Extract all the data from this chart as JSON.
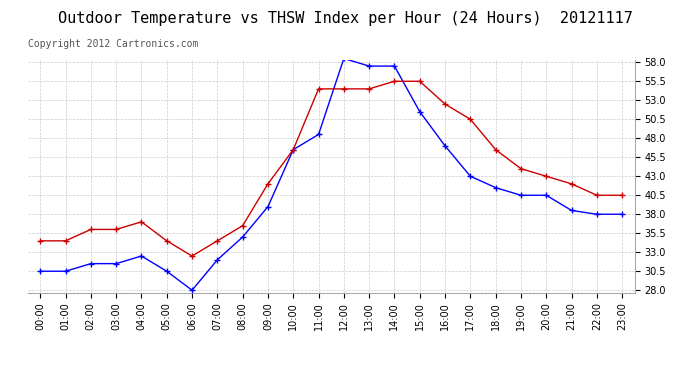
{
  "title": "Outdoor Temperature vs THSW Index per Hour (24 Hours)  20121117",
  "copyright": "Copyright 2012 Cartronics.com",
  "hours": [
    "00:00",
    "01:00",
    "02:00",
    "03:00",
    "04:00",
    "05:00",
    "06:00",
    "07:00",
    "08:00",
    "09:00",
    "10:00",
    "11:00",
    "12:00",
    "13:00",
    "14:00",
    "15:00",
    "16:00",
    "17:00",
    "18:00",
    "19:00",
    "20:00",
    "21:00",
    "22:00",
    "23:00"
  ],
  "thsw": [
    30.5,
    30.5,
    31.5,
    31.5,
    32.5,
    30.5,
    28.0,
    32.0,
    35.0,
    39.0,
    46.5,
    48.5,
    58.5,
    57.5,
    57.5,
    51.5,
    47.0,
    43.0,
    41.5,
    40.5,
    40.5,
    38.5,
    38.0,
    38.0
  ],
  "temperature": [
    34.5,
    34.5,
    36.0,
    36.0,
    37.0,
    34.5,
    32.5,
    34.5,
    36.5,
    42.0,
    46.5,
    54.5,
    54.5,
    54.5,
    55.5,
    55.5,
    52.5,
    50.5,
    46.5,
    44.0,
    43.0,
    42.0,
    40.5,
    40.5
  ],
  "thsw_color": "#0000FF",
  "temp_color": "#CC0000",
  "ylim_min": 28.0,
  "ylim_max": 58.0,
  "ytick_values": [
    28.0,
    30.5,
    33.0,
    35.5,
    38.0,
    40.5,
    43.0,
    45.5,
    48.0,
    50.5,
    53.0,
    55.5,
    58.0
  ],
  "background_color": "#ffffff",
  "grid_color": "#cccccc",
  "legend_thsw_bg": "#0000FF",
  "legend_temp_bg": "#CC0000",
  "title_fontsize": 11,
  "copyright_fontsize": 7,
  "tick_fontsize": 7
}
